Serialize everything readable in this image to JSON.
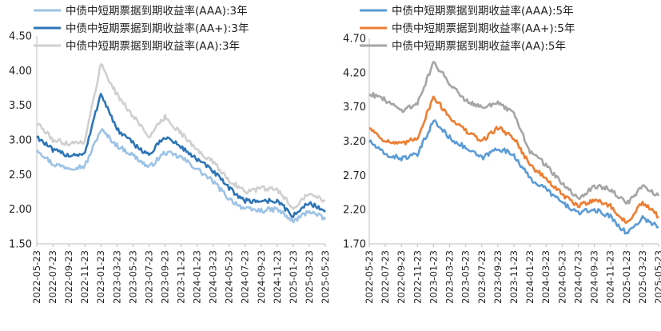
{
  "chart_data": [
    {
      "type": "line",
      "title": "",
      "xlabel": "",
      "ylabel": "",
      "ylim": [
        1.5,
        4.5
      ],
      "yticks": [
        "1.50",
        "2.00",
        "2.50",
        "3.00",
        "3.50",
        "4.00",
        "4.50"
      ],
      "grid": false,
      "legend": "top",
      "x": [
        "2022-05-23",
        "2022-07-23",
        "2022-09-23",
        "2022-11-23",
        "2023-01-23",
        "2023-03-23",
        "2023-05-23",
        "2023-07-23",
        "2023-09-23",
        "2023-11-23",
        "2024-01-23",
        "2024-03-23",
        "2024-05-23",
        "2024-07-23",
        "2024-09-23",
        "2024-11-23",
        "2025-01-23",
        "2025-03-23",
        "2025-05-23"
      ],
      "series": [
        {
          "name": "中债中短期票据到期收益率(AAA):3年",
          "color": "#9dc3e6",
          "values": [
            2.87,
            2.65,
            2.6,
            2.62,
            3.15,
            2.92,
            2.78,
            2.6,
            2.82,
            2.75,
            2.58,
            2.4,
            2.15,
            2.0,
            1.98,
            2.0,
            1.82,
            1.98,
            1.85
          ]
        },
        {
          "name": "中债中短期票据到期收益率(AA+):3年",
          "color": "#2e75b6",
          "values": [
            3.05,
            2.85,
            2.78,
            2.8,
            3.68,
            3.15,
            2.95,
            2.78,
            3.05,
            2.9,
            2.72,
            2.55,
            2.3,
            2.12,
            2.12,
            2.12,
            1.9,
            2.1,
            1.96
          ]
        },
        {
          "name": "中债中短期票据到期收益率(AA):3年",
          "color": "#d0d0d0",
          "values": [
            3.25,
            3.0,
            2.95,
            2.98,
            4.1,
            3.65,
            3.35,
            3.05,
            3.33,
            3.1,
            2.85,
            2.68,
            2.42,
            2.25,
            2.3,
            2.28,
            2.02,
            2.25,
            2.12
          ]
        }
      ]
    },
    {
      "type": "line",
      "title": "",
      "xlabel": "",
      "ylabel": "",
      "ylim": [
        1.7,
        4.7
      ],
      "yticks": [
        "1.70",
        "2.20",
        "2.70",
        "3.20",
        "3.70",
        "4.20",
        "4.70"
      ],
      "grid": false,
      "legend": "top",
      "x": [
        "2022-05-23",
        "2022-07-23",
        "2022-09-23",
        "2022-11-23",
        "2023-01-23",
        "2023-03-23",
        "2023-05-23",
        "2023-07-23",
        "2023-09-23",
        "2023-11-23",
        "2024-01-23",
        "2024-03-23",
        "2024-05-23",
        "2024-07-23",
        "2024-09-23",
        "2024-11-23",
        "2025-01-23",
        "2025-03-23",
        "2025-05-23"
      ],
      "series": [
        {
          "name": "中债中短期票据到期收益率(AAA):5年",
          "color": "#5b9bd5",
          "values": [
            3.2,
            3.0,
            2.95,
            3.0,
            3.5,
            3.25,
            3.1,
            2.95,
            3.1,
            3.0,
            2.65,
            2.5,
            2.3,
            2.15,
            2.2,
            2.1,
            1.85,
            2.08,
            1.95
          ]
        },
        {
          "name": "中债中短期票据到期收益率(AA+):5年",
          "color": "#ed7d31",
          "values": [
            3.4,
            3.2,
            3.15,
            3.25,
            3.85,
            3.55,
            3.35,
            3.2,
            3.4,
            3.25,
            2.85,
            2.65,
            2.42,
            2.25,
            2.35,
            2.25,
            2.0,
            2.3,
            2.1
          ]
        },
        {
          "name": "中债中短期票据到期收益率(AA):5年",
          "color": "#a5a5a5",
          "values": [
            3.9,
            3.8,
            3.65,
            3.75,
            4.35,
            4.05,
            3.8,
            3.7,
            3.75,
            3.6,
            3.05,
            2.85,
            2.58,
            2.35,
            2.55,
            2.5,
            2.28,
            2.55,
            2.4
          ]
        }
      ]
    }
  ]
}
